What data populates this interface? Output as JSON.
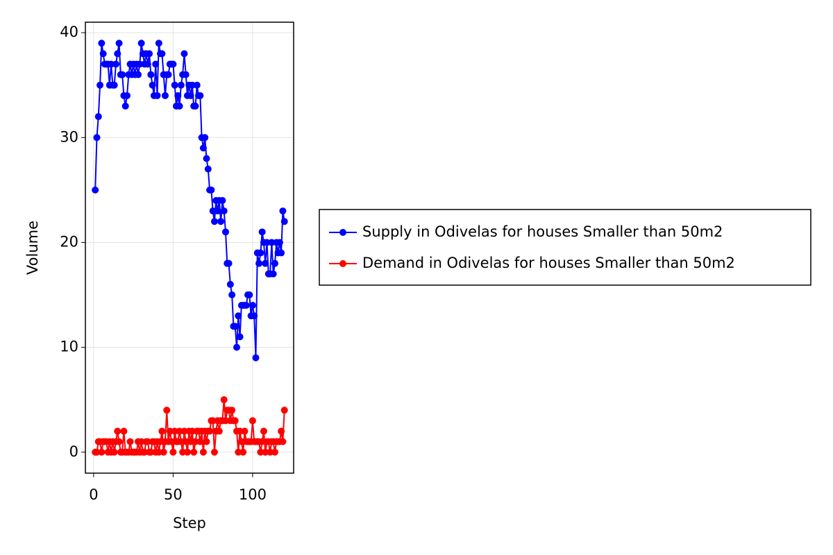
{
  "chart_data": {
    "type": "line",
    "x_label": "Step",
    "y_label": "Volume",
    "x": [
      1,
      2,
      3,
      4,
      5,
      6,
      7,
      8,
      9,
      10,
      11,
      12,
      13,
      14,
      15,
      16,
      17,
      18,
      19,
      20,
      21,
      22,
      23,
      24,
      25,
      26,
      27,
      28,
      29,
      30,
      31,
      32,
      33,
      34,
      35,
      36,
      37,
      38,
      39,
      40,
      41,
      42,
      43,
      44,
      45,
      46,
      47,
      48,
      49,
      50,
      51,
      52,
      53,
      54,
      55,
      56,
      57,
      58,
      59,
      60,
      61,
      62,
      63,
      64,
      65,
      66,
      67,
      68,
      69,
      70,
      71,
      72,
      73,
      74,
      75,
      76,
      77,
      78,
      79,
      80,
      81,
      82,
      83,
      84,
      85,
      86,
      87,
      88,
      89,
      90,
      91,
      92,
      93,
      94,
      95,
      96,
      97,
      98,
      99,
      100,
      101,
      102,
      103,
      104,
      105,
      106,
      107,
      108,
      109,
      110,
      111,
      112,
      113,
      114,
      115,
      116,
      117,
      118,
      119,
      120
    ],
    "series": [
      {
        "name": "Supply in Odivelas for houses Smaller than 50m2",
        "color": "#0000ff",
        "values": [
          25,
          30,
          32,
          35,
          39,
          38,
          37,
          37,
          37,
          35,
          37,
          35,
          35,
          37,
          38,
          39,
          36,
          36,
          34,
          33,
          34,
          36,
          37,
          36,
          37,
          36,
          37,
          36,
          37,
          39,
          38,
          37,
          38,
          37,
          38,
          36,
          35,
          34,
          37,
          34,
          39,
          38,
          38,
          36,
          34,
          36,
          36,
          37,
          37,
          37,
          35,
          33,
          34,
          33,
          35,
          36,
          38,
          36,
          34,
          35,
          34,
          35,
          33,
          33,
          35,
          34,
          34,
          30,
          29,
          30,
          28,
          27,
          25,
          25,
          23,
          22,
          24,
          23,
          24,
          22,
          24,
          23,
          21,
          18,
          18,
          16,
          15,
          12,
          12,
          10,
          13,
          11,
          14,
          14,
          14,
          14,
          15,
          15,
          13,
          14,
          13,
          9,
          19,
          18,
          19,
          21,
          20,
          18,
          20,
          17,
          17,
          20,
          17,
          18,
          20,
          19,
          20,
          19,
          23,
          22
        ]
      },
      {
        "name": "Demand in Odivelas for houses Smaller than 50m2",
        "color": "#ff0000",
        "values": [
          0,
          0,
          1,
          1,
          0,
          1,
          1,
          1,
          0,
          1,
          0,
          1,
          0,
          1,
          2,
          1,
          0,
          0,
          2,
          0,
          0,
          0,
          1,
          0,
          0,
          0,
          0,
          1,
          0,
          1,
          0,
          0,
          1,
          1,
          0,
          0,
          1,
          1,
          0,
          1,
          0,
          1,
          2,
          0,
          1,
          4,
          1,
          2,
          1,
          0,
          2,
          1,
          1,
          2,
          1,
          0,
          2,
          1,
          0,
          2,
          1,
          2,
          0,
          1,
          2,
          2,
          1,
          2,
          0,
          2,
          1,
          2,
          2,
          3,
          3,
          0,
          2,
          3,
          2,
          3,
          3,
          5,
          3,
          4,
          4,
          3,
          4,
          3,
          3,
          2,
          0,
          2,
          1,
          0,
          2,
          1,
          1,
          1,
          1,
          3,
          1,
          1,
          1,
          1,
          0,
          1,
          2,
          0,
          1,
          1,
          0,
          1,
          1,
          0,
          1,
          1,
          1,
          2,
          1,
          4
        ]
      }
    ],
    "xlim": [
      -5.2,
      125.8
    ],
    "ylim": [
      -2,
      41
    ],
    "xticks": [
      0,
      50,
      100
    ],
    "yticks": [
      0,
      10,
      20,
      30,
      40
    ],
    "grid": true,
    "legend": "right"
  }
}
